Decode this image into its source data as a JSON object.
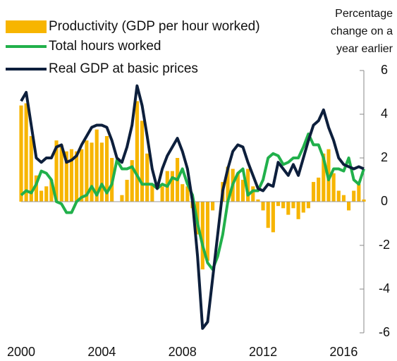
{
  "chart_data": {
    "type": "combo",
    "y_label": [
      "Percentage",
      "change on a",
      "year earlier"
    ],
    "x": [
      2000,
      2000.25,
      2000.5,
      2000.75,
      2001,
      2001.25,
      2001.5,
      2001.75,
      2002,
      2002.25,
      2002.5,
      2002.75,
      2003,
      2003.25,
      2003.5,
      2003.75,
      2004,
      2004.25,
      2004.5,
      2004.75,
      2005,
      2005.25,
      2005.5,
      2005.75,
      2006,
      2006.25,
      2006.5,
      2006.75,
      2007,
      2007.25,
      2007.5,
      2007.75,
      2008,
      2008.25,
      2008.5,
      2008.75,
      2009,
      2009.25,
      2009.5,
      2009.75,
      2010,
      2010.25,
      2010.5,
      2010.75,
      2011,
      2011.25,
      2011.5,
      2011.75,
      2012,
      2012.25,
      2012.5,
      2012.75,
      2013,
      2013.25,
      2013.5,
      2013.75,
      2014,
      2014.25,
      2014.5,
      2014.75,
      2015,
      2015.25,
      2015.5,
      2015.75,
      2016,
      2016.25,
      2016.5,
      2016.75,
      2017
    ],
    "series": [
      {
        "name": "Productivity (GDP per hour worked)",
        "type": "bar",
        "color": "#f7b500",
        "values": [
          4.4,
          4.5,
          3.0,
          1.2,
          0.5,
          0.7,
          1.0,
          2.8,
          2.6,
          2.3,
          2.4,
          2.3,
          2.4,
          2.8,
          2.7,
          3.3,
          2.7,
          3.0,
          2.0,
          0.0,
          0.3,
          1.0,
          1.9,
          4.6,
          3.7,
          2.2,
          0.8,
          0.0,
          0.7,
          1.4,
          1.4,
          2.0,
          0.8,
          0.7,
          -0.3,
          -1.5,
          -3.1,
          -2.7,
          -0.4,
          0.0,
          0.9,
          1.6,
          1.5,
          1.3,
          1.0,
          1.5,
          0.7,
          0.1,
          -0.4,
          -1.2,
          -1.4,
          -0.2,
          -0.3,
          -0.6,
          -0.3,
          -0.8,
          -0.5,
          -0.3,
          0.9,
          1.1,
          2.2,
          2.4,
          1.3,
          0.5,
          0.3,
          -0.4,
          0.5,
          0.8,
          0.1
        ]
      },
      {
        "name": "Total hours worked",
        "type": "line",
        "color": "#21b04b",
        "values": [
          0.3,
          0.5,
          0.4,
          0.8,
          1.4,
          1.3,
          1.0,
          0.0,
          -0.1,
          -0.5,
          -0.5,
          0.0,
          0.2,
          0.3,
          0.7,
          0.3,
          0.8,
          0.4,
          0.8,
          1.9,
          1.5,
          1.5,
          1.6,
          1.2,
          0.8,
          0.8,
          0.8,
          0.6,
          0.8,
          0.7,
          1.1,
          1.0,
          1.5,
          0.8,
          0.3,
          -1.0,
          -2.0,
          -2.8,
          -3.1,
          -2.5,
          -1.5,
          0.0,
          0.8,
          1.3,
          1.5,
          0.3,
          0.5,
          0.5,
          1.0,
          2.0,
          2.2,
          2.1,
          1.7,
          1.8,
          2.0,
          2.0,
          2.5,
          3.1,
          2.6,
          2.6,
          2.0,
          1.0,
          1.5,
          1.5,
          1.4,
          2.0,
          1.0,
          0.8,
          1.5
        ]
      },
      {
        "name": "Real GDP at basic prices",
        "type": "line",
        "color": "#0d1f3c",
        "values": [
          4.6,
          5.0,
          3.5,
          2.0,
          1.8,
          2.0,
          2.0,
          2.5,
          2.6,
          1.8,
          1.9,
          2.1,
          2.6,
          3.0,
          3.4,
          3.5,
          3.5,
          3.4,
          2.8,
          2.0,
          1.8,
          2.5,
          3.5,
          5.3,
          4.4,
          3.0,
          1.5,
          0.6,
          1.5,
          2.1,
          2.5,
          2.9,
          2.3,
          1.5,
          0.0,
          -2.5,
          -5.8,
          -5.5,
          -3.5,
          -1.5,
          0.5,
          1.5,
          2.3,
          2.6,
          2.5,
          1.8,
          1.2,
          0.6,
          0.5,
          0.8,
          0.7,
          1.8,
          1.5,
          1.2,
          1.7,
          1.2,
          2.0,
          2.8,
          3.5,
          3.7,
          4.2,
          3.4,
          2.8,
          2.0,
          1.7,
          1.6,
          1.5,
          1.6,
          1.5
        ]
      }
    ],
    "xlim": [
      2000,
      2017
    ],
    "xticks": [
      2000,
      2004,
      2008,
      2012,
      2016
    ],
    "ylim": [
      -6,
      6
    ],
    "yticks": [
      -6,
      -4,
      -2,
      0,
      2,
      4,
      6
    ],
    "legend": "top-left"
  }
}
